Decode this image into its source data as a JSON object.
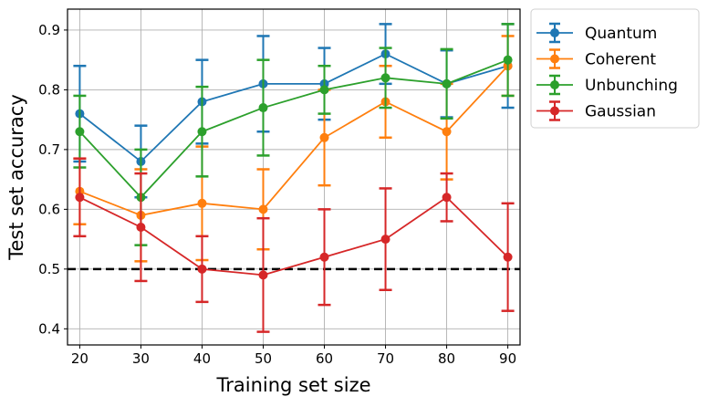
{
  "chart_data": {
    "type": "line",
    "title": "",
    "xlabel": "Training set size",
    "ylabel": "Test set accuracy",
    "x": [
      20,
      30,
      40,
      50,
      60,
      70,
      80,
      90
    ],
    "xlim": [
      18,
      92
    ],
    "ylim": [
      0.373,
      0.935
    ],
    "xticks": [
      "20",
      "30",
      "40",
      "50",
      "60",
      "70",
      "80",
      "90"
    ],
    "yticks": [
      "0.4",
      "0.5",
      "0.6",
      "0.7",
      "0.8",
      "0.9"
    ],
    "grid": true,
    "legend_position": "outside-top-right",
    "reference_line": {
      "y": 0.5,
      "style": "dashed",
      "color": "#000000"
    },
    "series": [
      {
        "name": "Quantum",
        "color": "#1f77b4",
        "values": [
          0.76,
          0.68,
          0.78,
          0.81,
          0.81,
          0.86,
          0.81,
          0.84
        ],
        "errors": [
          0.08,
          0.06,
          0.07,
          0.08,
          0.06,
          0.05,
          0.056,
          0.07
        ]
      },
      {
        "name": "Coherent",
        "color": "#ff7f0e",
        "values": [
          0.63,
          0.59,
          0.61,
          0.6,
          0.72,
          0.78,
          0.73,
          0.84
        ],
        "errors": [
          0.055,
          0.077,
          0.095,
          0.067,
          0.08,
          0.06,
          0.08,
          0.05
        ]
      },
      {
        "name": "Unbunching",
        "color": "#2ca02c",
        "values": [
          0.73,
          0.62,
          0.73,
          0.77,
          0.8,
          0.82,
          0.81,
          0.85
        ],
        "errors": [
          0.06,
          0.08,
          0.075,
          0.08,
          0.04,
          0.05,
          0.058,
          0.06
        ]
      },
      {
        "name": "Gaussian",
        "color": "#d62728",
        "values": [
          0.62,
          0.57,
          0.5,
          0.49,
          0.52,
          0.55,
          0.62,
          0.52
        ],
        "errors": [
          0.065,
          0.09,
          0.055,
          0.095,
          0.08,
          0.085,
          0.04,
          0.09
        ]
      }
    ]
  }
}
